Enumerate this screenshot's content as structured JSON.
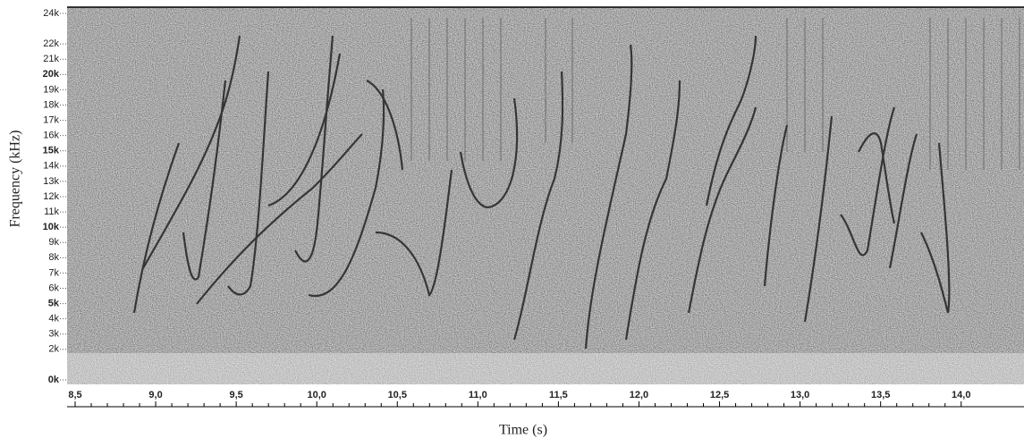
{
  "chart_data": {
    "type": "spectrogram",
    "x_label": "Time (s)",
    "y_label": "Frequency (kHz)",
    "xlim": [
      8.45,
      14.39
    ],
    "xticks": [
      {
        "value": 8.5,
        "label": "8,5"
      },
      {
        "value": 9.0,
        "label": "9,0"
      },
      {
        "value": 9.5,
        "label": "9,5"
      },
      {
        "value": 10.0,
        "label": "10,0"
      },
      {
        "value": 10.5,
        "label": "10,5"
      },
      {
        "value": 11.0,
        "label": "11,0"
      },
      {
        "value": 11.5,
        "label": "11,5"
      },
      {
        "value": 12.0,
        "label": "12,0"
      },
      {
        "value": 12.5,
        "label": "12,5"
      },
      {
        "value": 13.0,
        "label": "13,0"
      },
      {
        "value": 13.5,
        "label": "13,5"
      },
      {
        "value": 14.0,
        "label": "14,0"
      }
    ],
    "ylim": [
      0,
      24
    ],
    "yticks": [
      {
        "value": 0,
        "label": "0k"
      },
      {
        "value": 2,
        "label": "2k"
      },
      {
        "value": 3,
        "label": "3k"
      },
      {
        "value": 4,
        "label": "4k"
      },
      {
        "value": 5,
        "label": "5k"
      },
      {
        "value": 6,
        "label": "6k"
      },
      {
        "value": 7,
        "label": "7k"
      },
      {
        "value": 8,
        "label": "8k"
      },
      {
        "value": 9,
        "label": "9k"
      },
      {
        "value": 10,
        "label": "10k"
      },
      {
        "value": 11,
        "label": "11k"
      },
      {
        "value": 12,
        "label": "12k"
      },
      {
        "value": 13,
        "label": "13k"
      },
      {
        "value": 14,
        "label": "14k"
      },
      {
        "value": 15,
        "label": "15k"
      },
      {
        "value": 16,
        "label": "16k"
      },
      {
        "value": 17,
        "label": "17k"
      },
      {
        "value": 18,
        "label": "18k"
      },
      {
        "value": 19,
        "label": "19k"
      },
      {
        "value": 20,
        "label": "20k"
      },
      {
        "value": 21,
        "label": "21k"
      },
      {
        "value": 22,
        "label": "22k"
      },
      {
        "value": 24,
        "label": "24k"
      }
    ]
  }
}
